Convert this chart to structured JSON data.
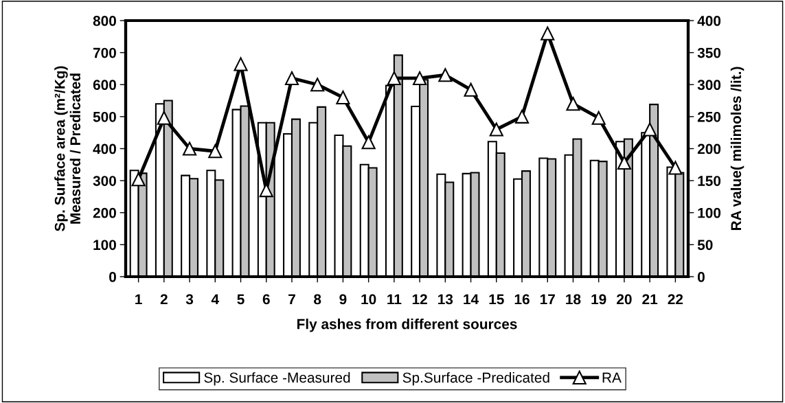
{
  "chart_data": {
    "type": "bar",
    "xlabel": "Fly ashes from different sources",
    "ylabel": "Sp. Surface area (m²/Kg)\nMeasured / Predicated",
    "y2label": "RA value( milimoles /lit.)",
    "categories": [
      "1",
      "2",
      "3",
      "4",
      "5",
      "6",
      "7",
      "8",
      "9",
      "10",
      "11",
      "12",
      "13",
      "14",
      "15",
      "16",
      "17",
      "18",
      "19",
      "20",
      "21",
      "22"
    ],
    "series": [
      {
        "name": "Sp. Surface -Measured",
        "color": "#ffffff",
        "values": [
          332,
          540,
          316,
          332,
          522,
          481,
          446,
          481,
          442,
          350,
          597,
          532,
          320,
          322,
          422,
          305,
          370,
          380,
          363,
          422,
          450,
          342
        ]
      },
      {
        "name": "Sp.Surface -Predicated",
        "color": "#c0c0c0",
        "values": [
          323,
          550,
          306,
          302,
          533,
          481,
          492,
          530,
          408,
          340,
          692,
          615,
          295,
          325,
          386,
          330,
          368,
          430,
          360,
          430,
          538,
          325
        ]
      },
      {
        "name": "RA",
        "type": "line",
        "axis": "y2",
        "color": "#000000",
        "marker": "triangle",
        "line_style": "solid",
        "values": [
          152,
          248,
          200,
          196,
          332,
          135,
          310,
          300,
          280,
          210,
          310,
          310,
          315,
          292,
          230,
          250,
          380,
          270,
          248,
          178,
          230,
          170
        ]
      }
    ],
    "ylim": [
      0,
      800
    ],
    "yticks": [
      0,
      100,
      200,
      300,
      400,
      500,
      600,
      700,
      800
    ],
    "y2lim": [
      0,
      400
    ],
    "y2ticks": [
      0,
      50,
      100,
      150,
      200,
      250,
      300,
      350,
      400
    ],
    "grid": false,
    "legend": "bottom"
  }
}
